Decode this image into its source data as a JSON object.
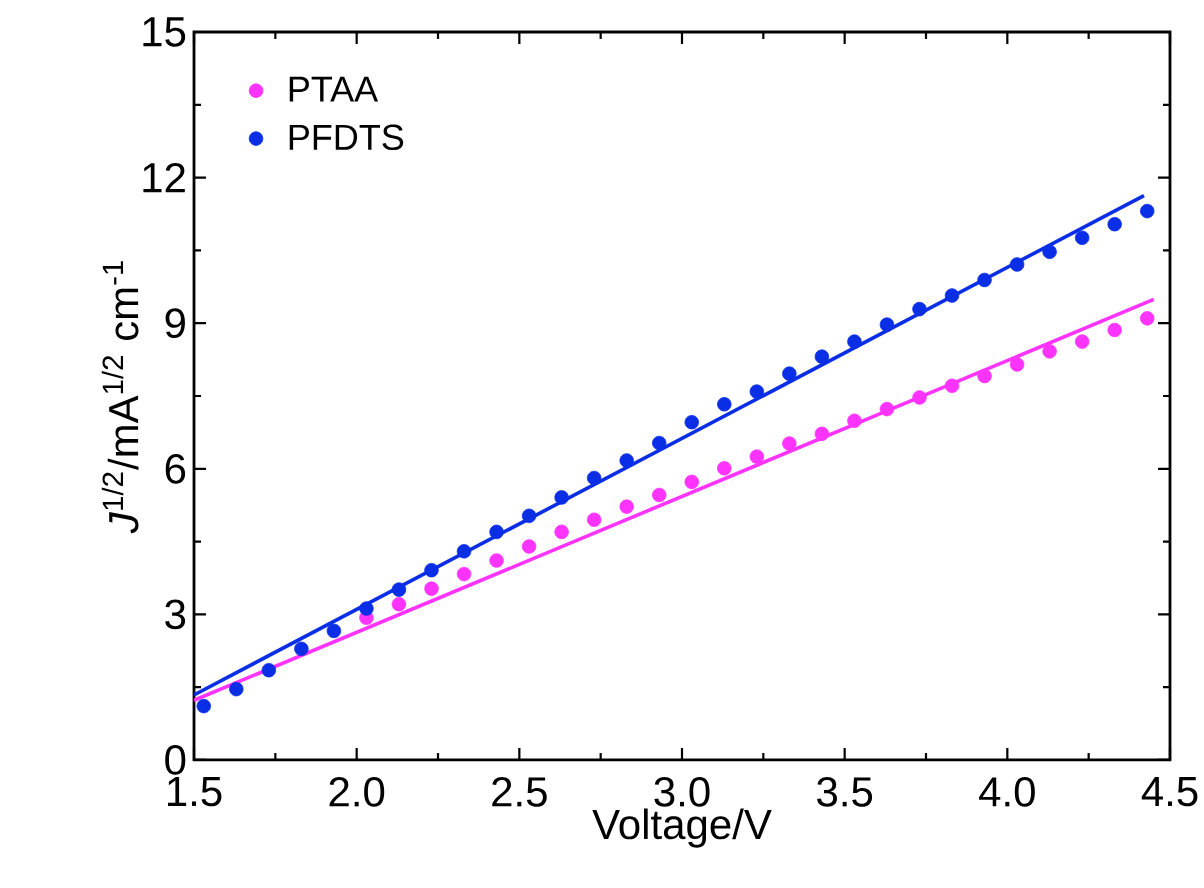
{
  "chart_data": {
    "type": "scatter",
    "xlabel": "Voltage/V",
    "ylabel": "*J*$^{1/2}$/mA$^{1/2}$ cm$^{-1}$",
    "xlim": [
      1.5,
      4.5
    ],
    "ylim": [
      0,
      15
    ],
    "xticks": [
      {
        "value": 1.5,
        "label": "1.5"
      },
      {
        "value": 2.0,
        "label": "2.0"
      },
      {
        "value": 2.5,
        "label": "2.5"
      },
      {
        "value": 3.0,
        "label": "3.0"
      },
      {
        "value": 3.5,
        "label": "3.5"
      },
      {
        "value": 4.0,
        "label": "4.0"
      },
      {
        "value": 4.5,
        "label": "4.5"
      }
    ],
    "yticks": [
      0,
      3,
      6,
      9,
      12,
      15
    ],
    "legend": "top left",
    "grid": false,
    "series": [
      {
        "name": "PTAA",
        "color": "#ff33ff",
        "marker": "circle",
        "x": [
          2.03,
          2.13,
          2.23,
          2.33,
          2.43,
          2.53,
          2.63,
          2.73,
          2.83,
          2.93,
          3.03,
          3.13,
          3.23,
          3.33,
          3.43,
          3.53,
          3.63,
          3.73,
          3.83,
          3.93,
          4.03,
          4.13,
          4.23,
          4.33,
          4.43
        ],
        "values": [
          2.93,
          3.21,
          3.53,
          3.83,
          4.11,
          4.4,
          4.7,
          4.95,
          5.22,
          5.46,
          5.73,
          6.01,
          6.25,
          6.52,
          6.72,
          6.99,
          7.23,
          7.47,
          7.71,
          7.91,
          8.15,
          8.42,
          8.62,
          8.86,
          9.1
        ]
      },
      {
        "name": "PFDTS",
        "color": "#0a2ee6",
        "marker": "circle",
        "x": [
          1.53,
          1.63,
          1.73,
          1.83,
          1.93,
          2.03,
          2.13,
          2.23,
          2.33,
          2.43,
          2.53,
          2.63,
          2.73,
          2.83,
          2.93,
          3.03,
          3.13,
          3.23,
          3.33,
          3.43,
          3.53,
          3.63,
          3.73,
          3.83,
          3.93,
          4.03,
          4.13,
          4.23,
          4.33,
          4.43
        ],
        "values": [
          1.11,
          1.46,
          1.85,
          2.29,
          2.66,
          3.12,
          3.51,
          3.91,
          4.3,
          4.7,
          5.03,
          5.41,
          5.81,
          6.17,
          6.53,
          6.96,
          7.33,
          7.59,
          7.96,
          8.31,
          8.62,
          8.97,
          9.29,
          9.57,
          9.89,
          10.21,
          10.47,
          10.76,
          11.04,
          11.31
        ]
      },
      {
        "type": "line",
        "color": "#ff33ff",
        "x": [
          1.5,
          4.45
        ],
        "values": [
          1.23,
          9.49
        ]
      },
      {
        "type": "line",
        "color": "#0a2ee6",
        "x": [
          1.5,
          4.42
        ],
        "values": [
          1.34,
          11.63
        ]
      }
    ]
  }
}
